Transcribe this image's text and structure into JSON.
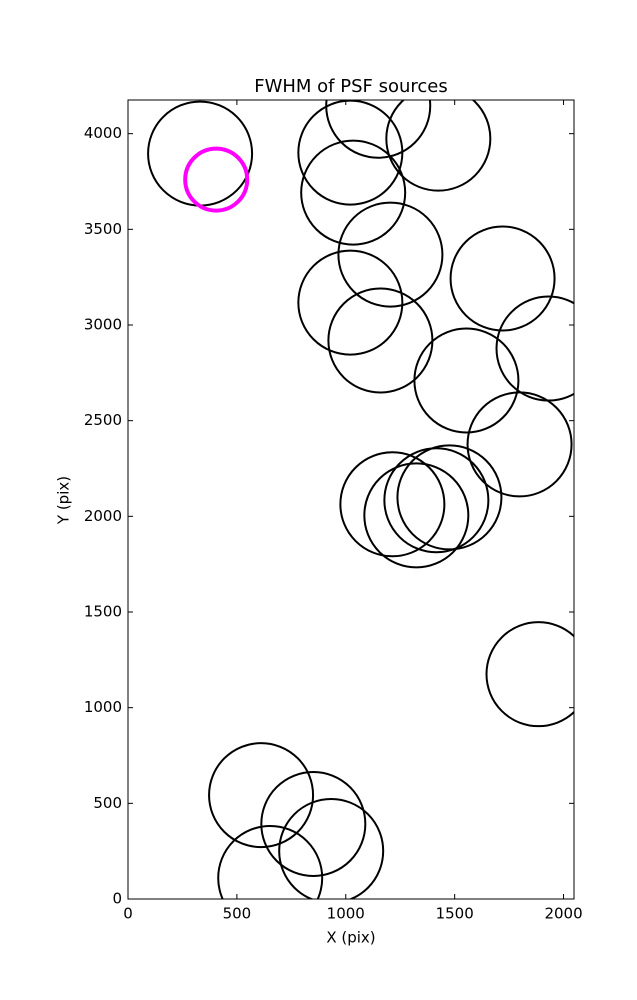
{
  "chart_data": {
    "type": "scatter",
    "title": "FWHM of PSF sources",
    "x_label": "X (pix)",
    "y_label": "Y (pix)",
    "xlim": [
      0,
      2048
    ],
    "ylim": [
      0,
      4176
    ],
    "xticks": [
      0,
      500,
      1000,
      1500,
      2000
    ],
    "yticks": [
      0,
      500,
      1000,
      1500,
      2000,
      2500,
      3000,
      3500,
      4000
    ],
    "series": [
      {
        "color": "#000000",
        "x": [
          331,
          1021,
          1149,
          1425,
          1034,
          1205,
          1720,
          1021,
          1159,
          1931,
          1554,
          1798,
          1214,
          1476,
          1416,
          1324,
          1885,
          611,
          851,
          933,
          653
        ],
        "y": [
          3896,
          3901,
          4146,
          3974,
          3692,
          3368,
          3243,
          3117,
          2919,
          2877,
          2710,
          2376,
          2063,
          2099,
          2084,
          2005,
          1175,
          543,
          392,
          251,
          110
        ]
      },
      {
        "color": "#ff00ff",
        "x": [
          405
        ],
        "y": [
          3760
        ]
      }
    ]
  }
}
